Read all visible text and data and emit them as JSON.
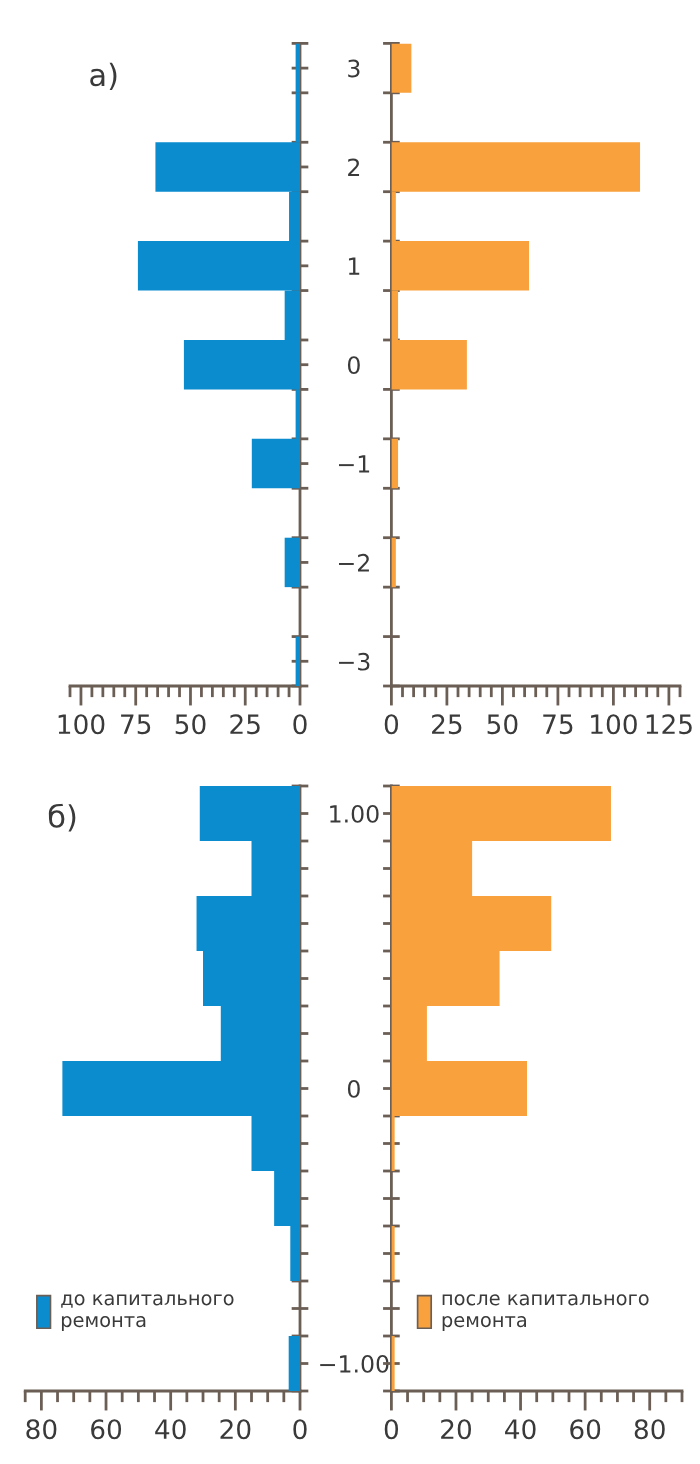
{
  "chart_data": [
    {
      "type": "histogram",
      "orientation": "horizontal",
      "annotations": [
        "а)"
      ],
      "tick_labels": true,
      "bins": [
        -3.25,
        -2.75,
        -2.25,
        -1.75,
        -1.25,
        -0.75,
        -0.25,
        0.25,
        0.75,
        1.25,
        1.75,
        2.25,
        2.75,
        3.25
      ],
      "series": [
        {
          "color": "#0a8ccf",
          "values": [
            2,
            0,
            7,
            0,
            22,
            2,
            53,
            7,
            74,
            5,
            66,
            2,
            2
          ]
        }
      ],
      "xlim": [
        105,
        0
      ],
      "xticks": [
        0,
        {
          "value": 5,
          "label": null
        },
        {
          "value": 10,
          "label": null
        },
        {
          "value": 15,
          "label": null
        },
        {
          "value": 20,
          "label": null
        },
        25,
        {
          "value": 30,
          "label": null
        },
        {
          "value": 35,
          "label": null
        },
        {
          "value": 40,
          "label": null
        },
        {
          "value": 45,
          "label": null
        },
        50,
        {
          "value": 55,
          "label": null
        },
        {
          "value": 60,
          "label": null
        },
        {
          "value": 65,
          "label": null
        },
        {
          "value": 70,
          "label": null
        },
        75,
        {
          "value": 80,
          "label": null
        },
        {
          "value": 85,
          "label": null
        },
        {
          "value": 90,
          "label": null
        },
        {
          "value": 95,
          "label": null
        },
        100,
        {
          "value": 105,
          "label": null
        }
      ],
      "ylim": [
        -3.25,
        3.25
      ],
      "yticks": [
        {
          "value": -3,
          "label": "−3"
        },
        {
          "value": -2,
          "label": "−2"
        },
        {
          "value": -1,
          "label": "−1"
        },
        0,
        1,
        2,
        3,
        {
          "value": -3.25,
          "label": null
        },
        {
          "value": -2.75,
          "label": null
        },
        {
          "value": -2.25,
          "label": null
        },
        {
          "value": -1.75,
          "label": null
        },
        {
          "value": -1.25,
          "label": null
        },
        {
          "value": -0.75,
          "label": null
        },
        {
          "value": -0.25,
          "label": null
        },
        {
          "value": 0.25,
          "label": null
        },
        {
          "value": 0.75,
          "label": null
        },
        {
          "value": 1.25,
          "label": null
        },
        {
          "value": 1.75,
          "label": null
        },
        {
          "value": 2.25,
          "label": null
        },
        {
          "value": 2.75,
          "label": null
        },
        {
          "value": 3.25,
          "label": null
        }
      ]
    },
    {
      "type": "histogram",
      "orientation": "horizontal",
      "tick_labels": "x",
      "bins": [
        -3.25,
        -2.75,
        -2.25,
        -1.75,
        -1.25,
        -0.75,
        -0.25,
        0.25,
        0.75,
        1.25,
        1.75,
        2.25,
        2.75,
        3.25
      ],
      "series": [
        {
          "color": "#f9a13c",
          "values": [
            0,
            0,
            2,
            0,
            3,
            0,
            34,
            3,
            62,
            2,
            112,
            0,
            9
          ]
        }
      ],
      "xlim": [
        0,
        130
      ],
      "xticks": [
        0,
        {
          "value": 5,
          "label": null
        },
        {
          "value": 10,
          "label": null
        },
        {
          "value": 15,
          "label": null
        },
        {
          "value": 20,
          "label": null
        },
        25,
        {
          "value": 30,
          "label": null
        },
        {
          "value": 35,
          "label": null
        },
        {
          "value": 40,
          "label": null
        },
        {
          "value": 45,
          "label": null
        },
        50,
        {
          "value": 55,
          "label": null
        },
        {
          "value": 60,
          "label": null
        },
        {
          "value": 65,
          "label": null
        },
        {
          "value": 70,
          "label": null
        },
        75,
        {
          "value": 80,
          "label": null
        },
        {
          "value": 85,
          "label": null
        },
        {
          "value": 90,
          "label": null
        },
        {
          "value": 95,
          "label": null
        },
        100,
        {
          "value": 105,
          "label": null
        },
        {
          "value": 110,
          "label": null
        },
        {
          "value": 115,
          "label": null
        },
        {
          "value": 120,
          "label": null
        },
        125,
        {
          "value": 130,
          "label": null
        }
      ],
      "ylim": [
        -3.25,
        3.25
      ],
      "yticks": [
        {
          "value": -3.25,
          "label": null
        },
        {
          "value": -2.75,
          "label": null
        },
        {
          "value": -2.25,
          "label": null
        },
        {
          "value": -1.75,
          "label": null
        },
        {
          "value": -1.25,
          "label": null
        },
        {
          "value": -0.75,
          "label": null
        },
        {
          "value": -0.25,
          "label": null
        },
        {
          "value": 0.25,
          "label": null
        },
        {
          "value": 0.75,
          "label": null
        },
        {
          "value": 1.25,
          "label": null
        },
        {
          "value": 1.75,
          "label": null
        },
        {
          "value": 2.25,
          "label": null
        },
        {
          "value": 2.75,
          "label": null
        },
        {
          "value": 3.25,
          "label": null
        }
      ]
    },
    {
      "type": "histogram",
      "orientation": "horizontal",
      "annotations": [
        "б)"
      ],
      "legend": "bottom left",
      "bins": [
        -1.1,
        -0.9,
        -0.7,
        -0.5,
        -0.3,
        -0.1,
        0.1,
        0.3,
        0.5,
        0.7,
        0.9,
        1.1
      ],
      "series": [
        {
          "name": "до капитального\nремонта",
          "color": "#0a8ccf",
          "values": [
            3.5,
            0,
            3,
            8,
            15,
            73.5,
            24.5,
            30,
            32,
            15,
            31
          ]
        }
      ],
      "xlim": [
        85,
        0
      ],
      "xticks": [
        0,
        {
          "value": 5,
          "label": null
        },
        {
          "value": 10,
          "label": null
        },
        {
          "value": 15,
          "label": null
        },
        20,
        {
          "value": 25,
          "label": null
        },
        {
          "value": 30,
          "label": null
        },
        {
          "value": 35,
          "label": null
        },
        40,
        {
          "value": 45,
          "label": null
        },
        {
          "value": 50,
          "label": null
        },
        {
          "value": 55,
          "label": null
        },
        60,
        {
          "value": 65,
          "label": null
        },
        {
          "value": 70,
          "label": null
        },
        {
          "value": 75,
          "label": null
        },
        80,
        {
          "value": 85,
          "label": null
        }
      ],
      "ylim": [
        -1.1,
        1.1
      ],
      "yticks": [
        {
          "value": -1,
          "label": "−1.00"
        },
        0,
        {
          "value": 1,
          "label": "1.00"
        },
        {
          "value": -1.1,
          "label": null
        },
        {
          "value": -0.9,
          "label": null
        },
        {
          "value": -0.8,
          "label": null
        },
        {
          "value": -0.7,
          "label": null
        },
        {
          "value": -0.6,
          "label": null
        },
        {
          "value": -0.5,
          "label": null
        },
        {
          "value": -0.4,
          "label": null
        },
        {
          "value": -0.3,
          "label": null
        },
        {
          "value": -0.2,
          "label": null
        },
        {
          "value": -0.1,
          "label": null
        },
        {
          "value": 0.1,
          "label": null
        },
        {
          "value": 0.2,
          "label": null
        },
        {
          "value": 0.3,
          "label": null
        },
        {
          "value": 0.4,
          "label": null
        },
        {
          "value": 0.5,
          "label": null
        },
        {
          "value": 0.6,
          "label": null
        },
        {
          "value": 0.7,
          "label": null
        },
        {
          "value": 0.8,
          "label": null
        },
        {
          "value": 0.9,
          "label": null
        },
        {
          "value": 1.1,
          "label": null
        }
      ]
    },
    {
      "type": "histogram",
      "orientation": "horizontal",
      "tick_labels": "x",
      "legend": "bottom left",
      "bins": [
        -1.1,
        -0.9,
        -0.7,
        -0.5,
        -0.3,
        -0.1,
        0.1,
        0.3,
        0.5,
        0.7,
        0.9,
        1.1
      ],
      "series": [
        {
          "name": "после капитального\nремонта",
          "color": "#f9a13c",
          "values": [
            1,
            0,
            1,
            0,
            1,
            42,
            11,
            33.5,
            49.5,
            25,
            68
          ]
        }
      ],
      "xlim": [
        0,
        90
      ],
      "xticks": [
        0,
        {
          "value": 5,
          "label": null
        },
        {
          "value": 10,
          "label": null
        },
        {
          "value": 15,
          "label": null
        },
        20,
        {
          "value": 25,
          "label": null
        },
        {
          "value": 30,
          "label": null
        },
        {
          "value": 35,
          "label": null
        },
        40,
        {
          "value": 45,
          "label": null
        },
        {
          "value": 50,
          "label": null
        },
        {
          "value": 55,
          "label": null
        },
        60,
        {
          "value": 65,
          "label": null
        },
        {
          "value": 70,
          "label": null
        },
        {
          "value": 75,
          "label": null
        },
        80,
        {
          "value": 85,
          "label": null
        },
        {
          "value": 90,
          "label": null
        }
      ],
      "ylim": [
        -1.1,
        1.1
      ],
      "yticks": [
        {
          "value": -1.1,
          "label": null
        },
        {
          "value": -1,
          "label": null
        },
        {
          "value": -0.9,
          "label": null
        },
        {
          "value": -0.8,
          "label": null
        },
        {
          "value": -0.7,
          "label": null
        },
        {
          "value": -0.6,
          "label": null
        },
        {
          "value": -0.5,
          "label": null
        },
        {
          "value": -0.4,
          "label": null
        },
        {
          "value": -0.3,
          "label": null
        },
        {
          "value": -0.2,
          "label": null
        },
        {
          "value": -0.1,
          "label": null
        },
        {
          "value": 0,
          "label": null
        },
        {
          "value": 0.1,
          "label": null
        },
        {
          "value": 0.2,
          "label": null
        },
        {
          "value": 0.3,
          "label": null
        },
        {
          "value": 0.4,
          "label": null
        },
        {
          "value": 0.5,
          "label": null
        },
        {
          "value": 0.6,
          "label": null
        },
        {
          "value": 0.7,
          "label": null
        },
        {
          "value": 0.8,
          "label": null
        },
        {
          "value": 0.9,
          "label": null
        },
        {
          "value": 1,
          "label": null
        },
        {
          "value": 1.1,
          "label": null
        }
      ]
    }
  ]
}
